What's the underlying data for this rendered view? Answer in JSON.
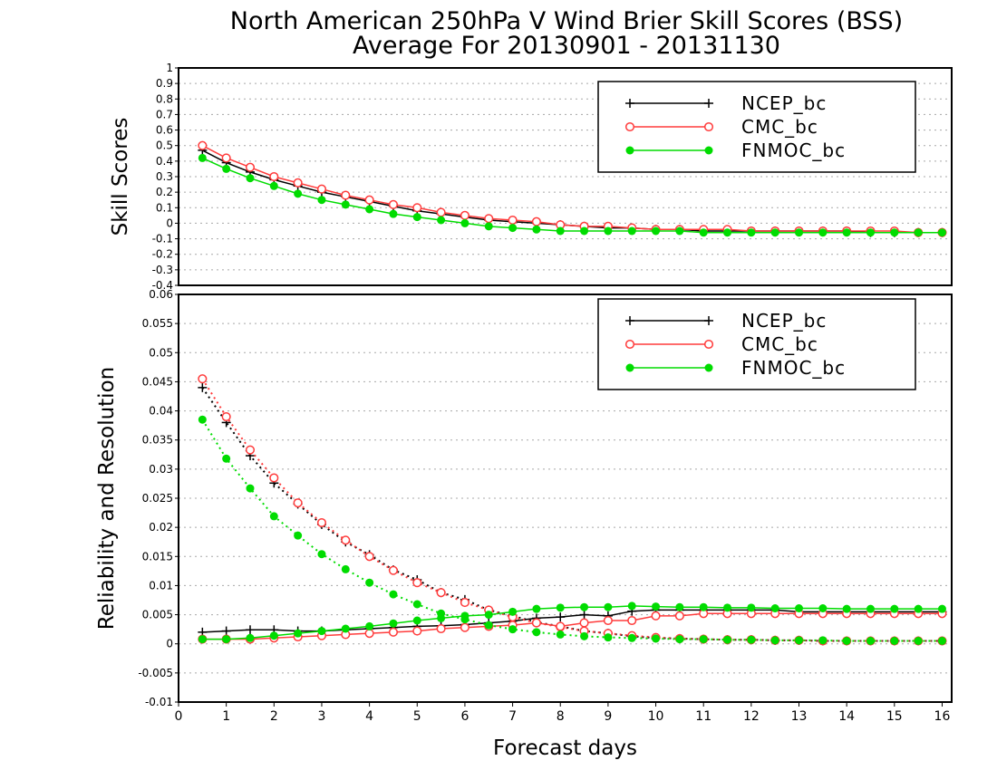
{
  "title": {
    "line1": "North American 250hPa V Wind Brier Skill Scores (BSS)",
    "line2": "Average For 20130901 - 20131130"
  },
  "colors": {
    "NCEP_bc": "#000000",
    "CMC_bc": "#ff3c3c",
    "FNMOC_bc": "#00dc00"
  },
  "chart_data": [
    {
      "type": "line",
      "ylabel": "Skill Scores",
      "xlabel": "",
      "xlim": [
        0,
        16.2
      ],
      "ylim": [
        -0.4,
        1
      ],
      "grid": true,
      "legend_position": "top-right",
      "yticks": [
        -0.4,
        -0.3,
        -0.2,
        -0.1,
        0,
        0.1,
        0.2,
        0.3,
        0.4,
        0.5,
        0.6,
        0.7,
        0.8,
        0.9,
        1
      ],
      "ytick_labels": [
        "-0.4",
        "-0.3",
        "-0.2",
        "-0.1",
        "0",
        "0.1",
        "0.2",
        "0.3",
        "0.4",
        "0.5",
        "0.6",
        "0.7",
        "0.8",
        "0.9",
        "1"
      ],
      "x": [
        0.5,
        1,
        1.5,
        2,
        2.5,
        3,
        3.5,
        4,
        4.5,
        5,
        5.5,
        6,
        6.5,
        7,
        7.5,
        8,
        8.5,
        9,
        9.5,
        10,
        10.5,
        11,
        11.5,
        12,
        12.5,
        13,
        13.5,
        14,
        14.5,
        15,
        15.5,
        16
      ],
      "series": [
        {
          "name": "NCEP_bc",
          "marker": "plus",
          "values": [
            0.47,
            0.39,
            0.33,
            0.28,
            0.24,
            0.2,
            0.17,
            0.14,
            0.11,
            0.08,
            0.06,
            0.04,
            0.02,
            0.01,
            0,
            -0.01,
            -0.02,
            -0.03,
            -0.03,
            -0.04,
            -0.04,
            -0.05,
            -0.05,
            -0.05,
            -0.05,
            -0.05,
            -0.05,
            -0.05,
            -0.06,
            -0.06,
            -0.06,
            -0.06
          ]
        },
        {
          "name": "CMC_bc",
          "marker": "open-circle",
          "values": [
            0.5,
            0.42,
            0.36,
            0.3,
            0.26,
            0.22,
            0.18,
            0.15,
            0.12,
            0.1,
            0.07,
            0.05,
            0.03,
            0.02,
            0.01,
            -0.01,
            -0.02,
            -0.02,
            -0.03,
            -0.04,
            -0.04,
            -0.04,
            -0.04,
            -0.05,
            -0.05,
            -0.05,
            -0.05,
            -0.05,
            -0.05,
            -0.05,
            -0.06,
            -0.06
          ]
        },
        {
          "name": "FNMOC_bc",
          "marker": "filled-circle",
          "values": [
            0.42,
            0.35,
            0.29,
            0.24,
            0.19,
            0.15,
            0.12,
            0.09,
            0.06,
            0.04,
            0.02,
            0,
            -0.02,
            -0.03,
            -0.04,
            -0.05,
            -0.05,
            -0.05,
            -0.05,
            -0.05,
            -0.05,
            -0.06,
            -0.06,
            -0.06,
            -0.06,
            -0.06,
            -0.06,
            -0.06,
            -0.06,
            -0.06,
            -0.06,
            -0.06
          ]
        }
      ]
    },
    {
      "type": "line",
      "ylabel": "Reliability and Resolution",
      "xlabel": "Forecast days",
      "xlim": [
        0,
        16.2
      ],
      "ylim": [
        -0.01,
        0.06
      ],
      "grid": true,
      "legend_position": "top-right",
      "yticks": [
        -0.01,
        -0.005,
        0,
        0.005,
        0.01,
        0.015,
        0.02,
        0.025,
        0.03,
        0.035,
        0.04,
        0.045,
        0.05,
        0.055,
        0.06
      ],
      "ytick_labels": [
        "-0.01",
        "-0.005",
        "0",
        "0.005",
        "0.01",
        "0.015",
        "0.02",
        "0.025",
        "0.03",
        "0.035",
        "0.04",
        "0.045",
        "0.05",
        "0.055",
        "0.06"
      ],
      "xticks": [
        0,
        1,
        2,
        3,
        4,
        5,
        6,
        7,
        8,
        9,
        10,
        11,
        12,
        13,
        14,
        15,
        16
      ],
      "xtick_labels": [
        "0",
        "1",
        "2",
        "3",
        "4",
        "5",
        "6",
        "7",
        "8",
        "9",
        "10",
        "11",
        "12",
        "13",
        "14",
        "15",
        "16"
      ],
      "x": [
        0.5,
        1,
        1.5,
        2,
        2.5,
        3,
        3.5,
        4,
        4.5,
        5,
        5.5,
        6,
        6.5,
        7,
        7.5,
        8,
        8.5,
        9,
        9.5,
        10,
        10.5,
        11,
        11.5,
        12,
        12.5,
        13,
        13.5,
        14,
        14.5,
        15,
        15.5,
        16
      ],
      "series": [
        {
          "name": "NCEP_bc",
          "metric": "reliability",
          "line": "dotted",
          "marker": "plus",
          "values": [
            0.044,
            0.038,
            0.0323,
            0.0276,
            0.024,
            0.0205,
            0.0175,
            0.0153,
            0.0127,
            0.011,
            0.0088,
            0.0076,
            0.0058,
            0.0048,
            0.0037,
            0.003,
            0.0022,
            0.0018,
            0.0013,
            0.001,
            0.0009,
            0.0008,
            0.0007,
            0.0007,
            0.0006,
            0.0006,
            0.0005,
            0.0005,
            0.0005,
            0.0005,
            0.0005,
            0.0005
          ]
        },
        {
          "name": "NCEP_bc",
          "metric": "resolution",
          "line": "solid",
          "marker": "plus",
          "values": [
            0.002,
            0.0022,
            0.0024,
            0.0024,
            0.0022,
            0.0022,
            0.0024,
            0.0026,
            0.0028,
            0.003,
            0.0031,
            0.0033,
            0.0036,
            0.0039,
            0.0044,
            0.0046,
            0.005,
            0.0048,
            0.0056,
            0.0058,
            0.0058,
            0.0058,
            0.0058,
            0.0058,
            0.0058,
            0.0055,
            0.0055,
            0.0055,
            0.0055,
            0.0055,
            0.0055,
            0.0055
          ]
        },
        {
          "name": "CMC_bc",
          "metric": "reliability",
          "line": "dotted",
          "marker": "open-circle",
          "values": [
            0.0455,
            0.039,
            0.0333,
            0.0285,
            0.0242,
            0.0208,
            0.0178,
            0.015,
            0.0126,
            0.0105,
            0.0088,
            0.0071,
            0.0058,
            0.0046,
            0.0036,
            0.0029,
            0.0022,
            0.0018,
            0.0014,
            0.0011,
            0.0009,
            0.0008,
            0.0007,
            0.0007,
            0.0006,
            0.0006,
            0.0005,
            0.0005,
            0.0005,
            0.0005,
            0.0005,
            0.0005
          ]
        },
        {
          "name": "CMC_bc",
          "metric": "resolution",
          "line": "solid",
          "marker": "open-circle",
          "values": [
            0.0008,
            0.0008,
            0.0008,
            0.001,
            0.0012,
            0.0014,
            0.0016,
            0.0018,
            0.002,
            0.0022,
            0.0026,
            0.0028,
            0.003,
            0.0032,
            0.0036,
            0.003,
            0.0036,
            0.004,
            0.004,
            0.0048,
            0.0048,
            0.0052,
            0.0052,
            0.0052,
            0.0052,
            0.0052,
            0.0052,
            0.0052,
            0.0052,
            0.0052,
            0.0052,
            0.0052
          ]
        },
        {
          "name": "FNMOC_bc",
          "metric": "reliability",
          "line": "dotted",
          "marker": "filled-circle",
          "values": [
            0.0385,
            0.0318,
            0.0267,
            0.0219,
            0.0186,
            0.0154,
            0.0128,
            0.0105,
            0.0085,
            0.0068,
            0.0052,
            0.0042,
            0.0032,
            0.0025,
            0.002,
            0.0016,
            0.0013,
            0.0011,
            0.001,
            0.0009,
            0.0008,
            0.0008,
            0.0007,
            0.0007,
            0.0006,
            0.0006,
            0.0006,
            0.0005,
            0.0005,
            0.0005,
            0.0005,
            0.0005
          ]
        },
        {
          "name": "FNMOC_bc",
          "metric": "resolution",
          "line": "solid",
          "marker": "filled-circle",
          "values": [
            0.0008,
            0.0008,
            0.001,
            0.0014,
            0.0018,
            0.0022,
            0.0026,
            0.003,
            0.0035,
            0.004,
            0.0044,
            0.0048,
            0.005,
            0.0055,
            0.006,
            0.0062,
            0.0063,
            0.0063,
            0.0065,
            0.0064,
            0.0063,
            0.0063,
            0.0062,
            0.0062,
            0.0061,
            0.0061,
            0.0061,
            0.006,
            0.006,
            0.006,
            0.006,
            0.006
          ]
        }
      ]
    }
  ]
}
